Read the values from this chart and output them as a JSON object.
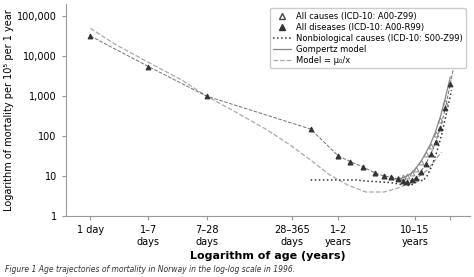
{
  "ylabel": "Logarithm of mortality per 10⁵ per 1 year",
  "xlabel": "Logarithm of age (years)",
  "caption": "Figure 1 Age trajectories of mortality in Norway in the log-log scale in 1996.",
  "ytick_positions": [
    1,
    10,
    100,
    1000,
    10000,
    100000
  ],
  "ytick_labels": [
    "1",
    "10",
    "100",
    "1,000",
    "10,000",
    "100,000"
  ],
  "all_causes_x": [
    4.85,
    5.05,
    5.25,
    5.45,
    5.6,
    5.72,
    5.82,
    5.9,
    5.97,
    6.05,
    6.12,
    6.2,
    6.28,
    6.36,
    6.44,
    6.52,
    6.6
  ],
  "all_causes_y": [
    32,
    23,
    17,
    12,
    10,
    9.5,
    9,
    9.5,
    10,
    12,
    15,
    22,
    35,
    55,
    110,
    250,
    700
  ],
  "all_diseases_x": [
    0.8,
    1.75,
    2.7,
    4.4,
    4.85,
    5.05,
    5.25,
    5.45,
    5.6,
    5.72,
    5.82,
    5.9,
    5.97,
    6.05,
    6.12,
    6.2,
    6.28,
    6.36,
    6.44,
    6.52,
    6.6,
    6.68,
    6.76
  ],
  "all_diseases_y": [
    32000,
    5500,
    1000,
    150,
    32,
    23,
    17,
    12,
    10,
    9.5,
    8.5,
    7.5,
    7,
    8,
    9,
    13,
    20,
    35,
    70,
    160,
    500,
    2000,
    8000
  ],
  "nonbio_x": [
    4.4,
    4.55,
    4.7,
    4.85,
    5.0,
    5.15,
    5.3,
    5.45,
    5.55,
    5.65,
    5.72,
    5.8,
    5.87,
    5.93,
    5.98,
    6.03,
    6.08,
    6.13,
    6.18,
    6.23,
    6.3,
    6.38,
    6.46,
    6.54,
    6.62,
    6.7
  ],
  "nonbio_y": [
    8,
    8,
    8,
    8,
    8,
    8,
    7.5,
    7.3,
    7.1,
    7.0,
    6.8,
    6.5,
    6.2,
    6.0,
    5.8,
    5.9,
    6.3,
    7.2,
    8.5,
    7.5,
    10,
    18,
    40,
    110,
    380,
    1400
  ],
  "gompertz_x": [
    5.72,
    5.82,
    5.9,
    5.97,
    6.05,
    6.12,
    6.2,
    6.28,
    6.36,
    6.44,
    6.52,
    6.6,
    6.68
  ],
  "gompertz_y": [
    8.5,
    8.5,
    9,
    10,
    12,
    16,
    23,
    38,
    65,
    130,
    310,
    900,
    3000
  ],
  "model_x": [
    0.8,
    1.2,
    1.75,
    2.3,
    2.7,
    3.2,
    3.7,
    4.1,
    4.4,
    4.7,
    5.0,
    5.3,
    5.6,
    5.82,
    6.05,
    6.3,
    6.54
  ],
  "model_y": [
    50000,
    20000,
    7000,
    2500,
    1000,
    380,
    140,
    55,
    25,
    11,
    6,
    4,
    4,
    5,
    7,
    14,
    40
  ],
  "color_dark": "#333333",
  "color_gray": "#888888",
  "color_lightgray": "#aaaaaa",
  "bg_color": "#ffffff",
  "legend_fontsize": 6.0,
  "axis_fontsize": 7.0,
  "caption_fontsize": 5.5
}
